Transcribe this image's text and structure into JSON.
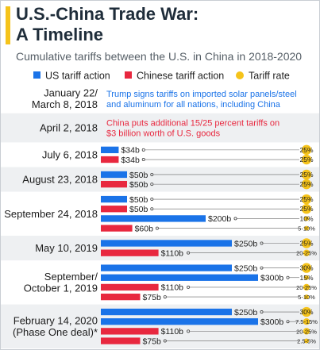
{
  "header": {
    "title_line1": "U.S.-China Trade War:",
    "title_line2": "A Timeline",
    "subtitle": "Cumulative tariffs between the U.S. in China in 2018-2020"
  },
  "legend": {
    "us": "US tariff action",
    "china": "Chinese tariff action",
    "rate": "Tariff rate",
    "placement": "top"
  },
  "colors": {
    "us": "#1a73e8",
    "china": "#e8283f",
    "rate": "#f5c31a",
    "title": "#1f2d3a",
    "row_shade": "#eef0f2"
  },
  "chart_data": {
    "type": "bar",
    "orientation": "horizontal",
    "xlim": [
      0,
      300
    ],
    "unit": "billion USD",
    "events": [
      {
        "date": "January 22/ March 8, 2018",
        "date_lines": [
          "January 22/",
          "March 8, 2018"
        ],
        "note": "Trump signs tariffs on imported solar panels/steel and aluminum for all nations, including China",
        "note_lines": [
          "Trump signs tariffs on imported solar panels/steel",
          "and aluminum for all nations, including China"
        ],
        "note_side": "us",
        "bars": []
      },
      {
        "date": "April 2, 2018",
        "date_lines": [
          "April 2, 2018"
        ],
        "note": "China puts additional 15/25 percent tariffs on $3 billion worth of U.S. goods",
        "note_lines": [
          "China puts additional 15/25 percent tariffs on",
          "$3 billion worth of U.S. goods"
        ],
        "note_side": "china",
        "bars": []
      },
      {
        "date": "July 6, 2018",
        "date_lines": [
          "July 6, 2018"
        ],
        "bars": [
          {
            "side": "us",
            "value": 34,
            "label": "$34b",
            "rate": "25%"
          },
          {
            "side": "china",
            "value": 34,
            "label": "$34b",
            "rate": "25%"
          }
        ]
      },
      {
        "date": "August 23, 2018",
        "date_lines": [
          "August 23, 2018"
        ],
        "bars": [
          {
            "side": "us",
            "value": 50,
            "label": "$50b",
            "rate": "25%"
          },
          {
            "side": "china",
            "value": 50,
            "label": "$50b",
            "rate": "25%"
          }
        ]
      },
      {
        "date": "September 24, 2018",
        "date_lines": [
          "September 24, 2018"
        ],
        "bars": [
          {
            "side": "us",
            "value": 50,
            "label": "$50b",
            "rate": "25%"
          },
          {
            "side": "china",
            "value": 50,
            "label": "$50b",
            "rate": "25%"
          },
          {
            "side": "us",
            "value": 200,
            "label": "$200b",
            "rate": "10%"
          },
          {
            "side": "china",
            "value": 60,
            "label": "$60b",
            "rate": "5-10%"
          }
        ]
      },
      {
        "date": "May 10, 2019",
        "date_lines": [
          "May 10, 2019"
        ],
        "bars": [
          {
            "side": "us",
            "value": 250,
            "label": "$250b",
            "rate": "25%"
          },
          {
            "side": "china",
            "value": 110,
            "label": "$110b",
            "rate": "20-25%"
          }
        ]
      },
      {
        "date": "September/ October 1, 2019",
        "date_lines": [
          "September/",
          "October 1, 2019"
        ],
        "bars": [
          {
            "side": "us",
            "value": 250,
            "label": "$250b",
            "rate": "30%"
          },
          {
            "side": "us",
            "value": 300,
            "label": "$300b",
            "rate": "15%"
          },
          {
            "side": "china",
            "value": 110,
            "label": "$110b",
            "rate": "20-25%"
          },
          {
            "side": "china",
            "value": 75,
            "label": "$75b",
            "rate": "5-10%"
          }
        ]
      },
      {
        "date": "February 14, 2020 (Phase One deal)*",
        "date_lines": [
          "February 14, 2020",
          "(Phase One deal)*"
        ],
        "bars": [
          {
            "side": "us",
            "value": 250,
            "label": "$250b",
            "rate": "30%"
          },
          {
            "side": "us",
            "value": 300,
            "label": "$300b",
            "rate": "7.5-15%"
          },
          {
            "side": "china",
            "value": 110,
            "label": "$110b",
            "rate": "20-25%"
          },
          {
            "side": "china",
            "value": 75,
            "label": "$75b",
            "rate": "2.5-5%"
          }
        ]
      }
    ]
  }
}
